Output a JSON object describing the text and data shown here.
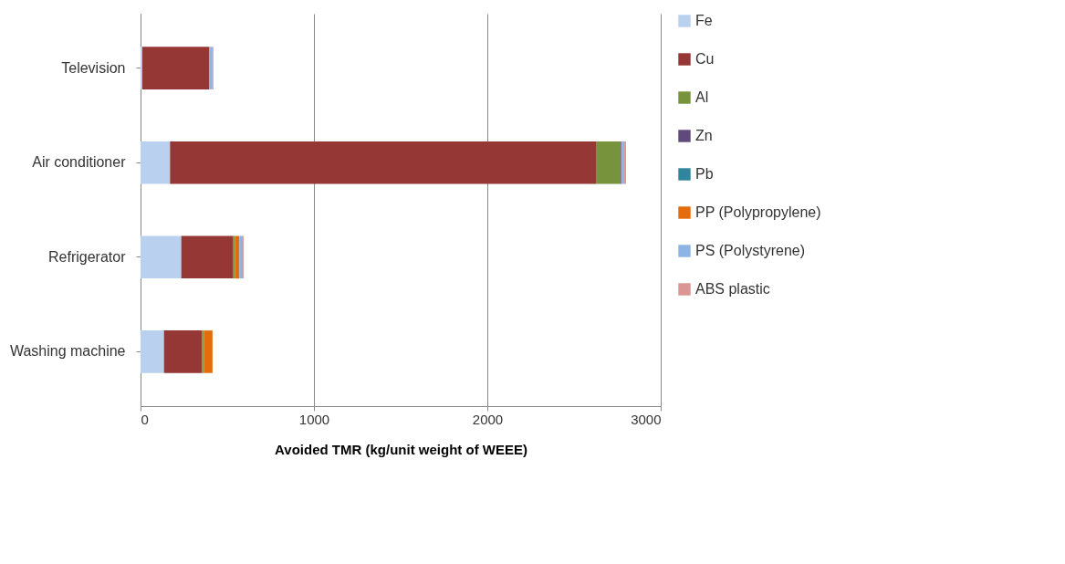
{
  "chart_data": {
    "type": "bar",
    "orientation": "horizontal",
    "stacked": true,
    "categories": [
      "Television",
      "Air conditioner",
      "Refrigerator",
      "Washing machine"
    ],
    "series": [
      {
        "name": "Fe",
        "color": "#b9d1ee",
        "values": [
          10,
          170,
          235,
          135
        ]
      },
      {
        "name": "Cu",
        "color": "#953735",
        "values": [
          385,
          2460,
          300,
          220
        ]
      },
      {
        "name": "Al",
        "color": "#77933c",
        "values": [
          0,
          140,
          10,
          10
        ]
      },
      {
        "name": "Zn",
        "color": "#604a7b",
        "values": [
          0,
          5,
          0,
          0
        ]
      },
      {
        "name": "Pb",
        "color": "#31859c",
        "values": [
          0,
          0,
          0,
          0
        ]
      },
      {
        "name": "PP (Polypropylene)",
        "color": "#e46c0a",
        "values": [
          0,
          0,
          25,
          50
        ]
      },
      {
        "name": "PS (Polystyrene)",
        "color": "#8eb4e3",
        "values": [
          20,
          15,
          20,
          0
        ]
      },
      {
        "name": "ABS plastic",
        "color": "#d99694",
        "values": [
          5,
          10,
          5,
          0
        ]
      }
    ],
    "xlim": [
      0,
      3000
    ],
    "xticks": [
      0,
      1000,
      2000,
      3000
    ],
    "xlabel": "Avoided TMR (kg/unit weight of WEEE)",
    "grid": "x",
    "legend": "right"
  }
}
